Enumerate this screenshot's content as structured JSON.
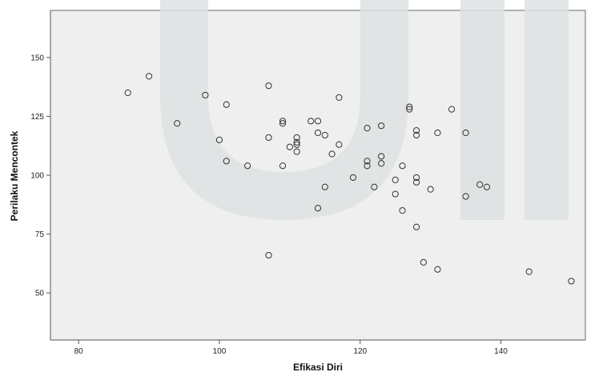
{
  "chart_data": {
    "type": "scatter",
    "title": "",
    "xlabel": "Efikasi Diri",
    "ylabel": "Perilaku Mencontek",
    "xlim": [
      76,
      152
    ],
    "ylim": [
      30,
      170
    ],
    "x_ticks": [
      80,
      100,
      120,
      140
    ],
    "y_ticks": [
      50,
      75,
      100,
      125,
      150
    ],
    "x_tick_labels": [
      "80",
      "100",
      "120",
      "140"
    ],
    "y_tick_labels": [
      "50",
      "75",
      "100",
      "125",
      "150"
    ],
    "grid": false,
    "series": [
      {
        "points": [
          {
            "x": 87,
            "y": 135
          },
          {
            "x": 90,
            "y": 142
          },
          {
            "x": 94,
            "y": 122
          },
          {
            "x": 98,
            "y": 134
          },
          {
            "x": 100,
            "y": 115
          },
          {
            "x": 101,
            "y": 130
          },
          {
            "x": 101,
            "y": 106
          },
          {
            "x": 104,
            "y": 104
          },
          {
            "x": 107,
            "y": 138
          },
          {
            "x": 107,
            "y": 116
          },
          {
            "x": 107,
            "y": 66
          },
          {
            "x": 109,
            "y": 123
          },
          {
            "x": 109,
            "y": 122
          },
          {
            "x": 109,
            "y": 104
          },
          {
            "x": 110,
            "y": 112
          },
          {
            "x": 111,
            "y": 116
          },
          {
            "x": 111,
            "y": 114
          },
          {
            "x": 111,
            "y": 113
          },
          {
            "x": 111,
            "y": 110
          },
          {
            "x": 113,
            "y": 123
          },
          {
            "x": 114,
            "y": 123
          },
          {
            "x": 114,
            "y": 118
          },
          {
            "x": 114,
            "y": 86
          },
          {
            "x": 115,
            "y": 117
          },
          {
            "x": 115,
            "y": 95
          },
          {
            "x": 116,
            "y": 109
          },
          {
            "x": 117,
            "y": 133
          },
          {
            "x": 117,
            "y": 113
          },
          {
            "x": 119,
            "y": 99
          },
          {
            "x": 121,
            "y": 120
          },
          {
            "x": 121,
            "y": 106
          },
          {
            "x": 121,
            "y": 104
          },
          {
            "x": 122,
            "y": 95
          },
          {
            "x": 123,
            "y": 121
          },
          {
            "x": 123,
            "y": 108
          },
          {
            "x": 123,
            "y": 105
          },
          {
            "x": 125,
            "y": 98
          },
          {
            "x": 125,
            "y": 92
          },
          {
            "x": 126,
            "y": 104
          },
          {
            "x": 126,
            "y": 85
          },
          {
            "x": 127,
            "y": 129
          },
          {
            "x": 127,
            "y": 128
          },
          {
            "x": 128,
            "y": 119
          },
          {
            "x": 128,
            "y": 117
          },
          {
            "x": 128,
            "y": 99
          },
          {
            "x": 128,
            "y": 97
          },
          {
            "x": 128,
            "y": 78
          },
          {
            "x": 129,
            "y": 63
          },
          {
            "x": 130,
            "y": 94
          },
          {
            "x": 131,
            "y": 118
          },
          {
            "x": 131,
            "y": 60
          },
          {
            "x": 133,
            "y": 128
          },
          {
            "x": 135,
            "y": 118
          },
          {
            "x": 135,
            "y": 91
          },
          {
            "x": 137,
            "y": 96
          },
          {
            "x": 138,
            "y": 95
          },
          {
            "x": 144,
            "y": 59
          },
          {
            "x": 150,
            "y": 55
          }
        ]
      }
    ]
  },
  "colors": {
    "page_background": "#ffffff",
    "plot_background": "#efefef",
    "watermark": "#dde2e2",
    "marker_stroke": "#333333",
    "axis_line": "#555555",
    "frame": "#6b6b6b"
  }
}
